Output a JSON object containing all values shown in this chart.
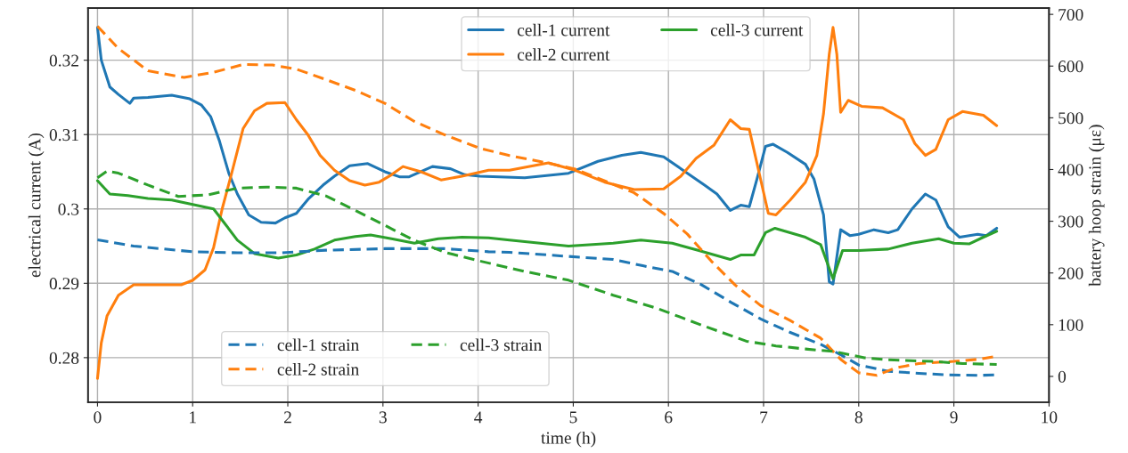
{
  "chart_data": {
    "type": "line",
    "xlabel": "time (h)",
    "ylabel": "electrical current (A)",
    "y2label": "battery hoop strain (με)",
    "xlim": [
      -0.1,
      10
    ],
    "xticks": [
      0,
      1,
      2,
      3,
      4,
      5,
      6,
      7,
      8,
      9,
      10
    ],
    "ylim": [
      0.274,
      0.327
    ],
    "yticks": [
      0.28,
      0.29,
      0.3,
      0.31,
      0.32
    ],
    "y2lim": [
      -50,
      712
    ],
    "y2ticks": [
      0,
      100,
      200,
      300,
      400,
      500,
      600,
      700
    ],
    "grid": true,
    "legend": "top",
    "line_style": "solid",
    "marker": "none",
    "series": [
      {
        "name": "cell-1 current",
        "color": "#1f77b4",
        "x": [
          0,
          0.04,
          0.13,
          0.22,
          0.34,
          0.38,
          0.53,
          0.78,
          0.97,
          1.09,
          1.19,
          1.28,
          1.38,
          1.47,
          1.59,
          1.72,
          1.87,
          1.97,
          2.09,
          2.22,
          2.37,
          2.49,
          2.65,
          2.84,
          3.02,
          3.18,
          3.27,
          3.52,
          3.71,
          3.86,
          4.02,
          4.49,
          4.95,
          5.26,
          5.51,
          5.71,
          5.95,
          6.2,
          6.38,
          6.51,
          6.65,
          6.76,
          6.85,
          6.93,
          7.02,
          7.1,
          7.25,
          7.44,
          7.53,
          7.63,
          7.69,
          7.73,
          7.81,
          7.91,
          8.0,
          8.16,
          8.31,
          8.41,
          8.56,
          8.7,
          8.81,
          8.94,
          9.06,
          9.25,
          9.34,
          9.45
        ],
        "values": [
          0.3244,
          0.32,
          0.3164,
          0.3154,
          0.3142,
          0.3149,
          0.315,
          0.3153,
          0.3148,
          0.314,
          0.3124,
          0.3092,
          0.3048,
          0.302,
          0.2992,
          0.2982,
          0.2981,
          0.2988,
          0.2994,
          0.3014,
          0.3032,
          0.3044,
          0.3058,
          0.3061,
          0.305,
          0.3043,
          0.3043,
          0.3057,
          0.3054,
          0.3046,
          0.3044,
          0.3042,
          0.3048,
          0.3064,
          0.3072,
          0.3076,
          0.307,
          0.3048,
          0.3032,
          0.302,
          0.2998,
          0.3005,
          0.3003,
          0.304,
          0.3084,
          0.3087,
          0.3076,
          0.306,
          0.304,
          0.2992,
          0.2902,
          0.2899,
          0.2972,
          0.2964,
          0.2966,
          0.2972,
          0.2968,
          0.2972,
          0.3,
          0.302,
          0.3012,
          0.2976,
          0.2962,
          0.2966,
          0.2964,
          0.2974
        ]
      },
      {
        "name": "cell-2 current",
        "color": "#ff7f0e",
        "x": [
          0,
          0.04,
          0.1,
          0.22,
          0.38,
          0.53,
          0.75,
          0.88,
          1.0,
          1.13,
          1.22,
          1.31,
          1.41,
          1.53,
          1.65,
          1.78,
          1.97,
          2.09,
          2.21,
          2.34,
          2.49,
          2.65,
          2.81,
          2.96,
          3.09,
          3.21,
          3.4,
          3.61,
          3.83,
          4.11,
          4.33,
          4.74,
          5.02,
          5.33,
          5.64,
          5.95,
          6.13,
          6.29,
          6.48,
          6.65,
          6.76,
          6.85,
          6.94,
          7.05,
          7.13,
          7.28,
          7.44,
          7.56,
          7.63,
          7.69,
          7.73,
          7.77,
          7.81,
          7.89,
          8.03,
          8.25,
          8.47,
          8.59,
          8.7,
          8.81,
          8.94,
          9.09,
          9.31,
          9.45
        ],
        "values": [
          0.2772,
          0.282,
          0.2856,
          0.2884,
          0.2898,
          0.2898,
          0.2898,
          0.2898,
          0.2904,
          0.2918,
          0.2948,
          0.3,
          0.3048,
          0.3108,
          0.3132,
          0.3142,
          0.3143,
          0.312,
          0.31,
          0.3072,
          0.3052,
          0.3038,
          0.3032,
          0.3036,
          0.3046,
          0.3057,
          0.305,
          0.3039,
          0.3044,
          0.3052,
          0.3052,
          0.3062,
          0.3052,
          0.3036,
          0.3026,
          0.3027,
          0.3044,
          0.3068,
          0.3086,
          0.312,
          0.3108,
          0.3107,
          0.3056,
          0.2994,
          0.2992,
          0.3012,
          0.3036,
          0.3072,
          0.3128,
          0.3208,
          0.3244,
          0.3208,
          0.313,
          0.3146,
          0.3138,
          0.3136,
          0.312,
          0.3088,
          0.3072,
          0.308,
          0.312,
          0.3131,
          0.3126,
          0.3112
        ]
      },
      {
        "name": "cell-3 current",
        "color": "#2ca02c",
        "x": [
          0,
          0.13,
          0.32,
          0.53,
          0.78,
          1.0,
          1.22,
          1.34,
          1.47,
          1.65,
          1.9,
          2.09,
          2.28,
          2.49,
          2.71,
          2.87,
          3.09,
          3.33,
          3.58,
          3.83,
          4.11,
          4.33,
          4.95,
          5.42,
          5.71,
          6.04,
          6.32,
          6.65,
          6.76,
          6.9,
          7.02,
          7.12,
          7.44,
          7.6,
          7.69,
          7.73,
          7.83,
          8.0,
          8.31,
          8.56,
          8.84,
          9.0,
          9.16,
          9.31,
          9.45
        ],
        "values": [
          0.3038,
          0.302,
          0.3018,
          0.3014,
          0.3012,
          0.3006,
          0.3,
          0.298,
          0.2958,
          0.294,
          0.2934,
          0.2938,
          0.2946,
          0.2958,
          0.2963,
          0.2965,
          0.296,
          0.2954,
          0.296,
          0.2962,
          0.2961,
          0.2958,
          0.295,
          0.2954,
          0.2958,
          0.2954,
          0.2944,
          0.2932,
          0.2938,
          0.2938,
          0.2968,
          0.2974,
          0.2962,
          0.2952,
          0.292,
          0.2906,
          0.2944,
          0.2944,
          0.2946,
          0.2954,
          0.296,
          0.2954,
          0.2953,
          0.2962,
          0.297
        ]
      },
      {
        "name": "cell-1 strain",
        "color": "#1f77b4",
        "axis": "y2",
        "line_style": "dashed",
        "x": [
          0,
          0.38,
          1.0,
          1.47,
          1.93,
          2.4,
          3.02,
          3.65,
          4.11,
          4.33,
          4.95,
          5.42,
          5.73,
          6.04,
          6.35,
          6.66,
          6.97,
          7.28,
          7.6,
          7.81,
          8.0,
          8.31,
          8.63,
          8.94,
          9.25,
          9.45
        ],
        "values": [
          264,
          252,
          241,
          239,
          239,
          244,
          247,
          247,
          241,
          240,
          232,
          226,
          214,
          203,
          177,
          143,
          111,
          85,
          62,
          42,
          22,
          10,
          6,
          3,
          2,
          3
        ]
      },
      {
        "name": "cell-2 strain",
        "color": "#ff7f0e",
        "axis": "y2",
        "line_style": "dashed",
        "x": [
          0,
          0.22,
          0.53,
          0.91,
          1.22,
          1.53,
          1.84,
          2.09,
          2.4,
          2.71,
          3.02,
          3.33,
          3.65,
          4.02,
          4.33,
          4.64,
          5.02,
          5.33,
          5.64,
          5.95,
          6.2,
          6.45,
          6.7,
          6.97,
          7.28,
          7.6,
          7.81,
          8.0,
          8.19,
          8.38,
          8.63,
          9.0,
          9.25,
          9.45
        ],
        "values": [
          677,
          634,
          591,
          578,
          588,
          603,
          602,
          594,
          574,
          553,
          528,
          493,
          467,
          441,
          427,
          416,
          401,
          378,
          355,
          315,
          275,
          223,
          177,
          137,
          108,
          74,
          33,
          7,
          2,
          16,
          25,
          29,
          33,
          39
        ]
      },
      {
        "name": "cell-3 strain",
        "color": "#2ca02c",
        "axis": "y2",
        "line_style": "dashed",
        "x": [
          0,
          0.1,
          0.22,
          0.53,
          0.85,
          1.16,
          1.47,
          1.78,
          2.09,
          2.4,
          2.71,
          3.02,
          3.33,
          3.65,
          4.02,
          4.49,
          4.95,
          5.42,
          5.89,
          6.35,
          6.82,
          7.13,
          7.44,
          7.75,
          8.06,
          8.31,
          8.78,
          9.09,
          9.45
        ],
        "values": [
          384,
          397,
          393,
          370,
          348,
          351,
          364,
          366,
          364,
          349,
          321,
          292,
          263,
          240,
          223,
          203,
          186,
          157,
          131,
          99,
          68,
          59,
          53,
          48,
          36,
          32,
          29,
          25,
          23
        ]
      }
    ]
  }
}
